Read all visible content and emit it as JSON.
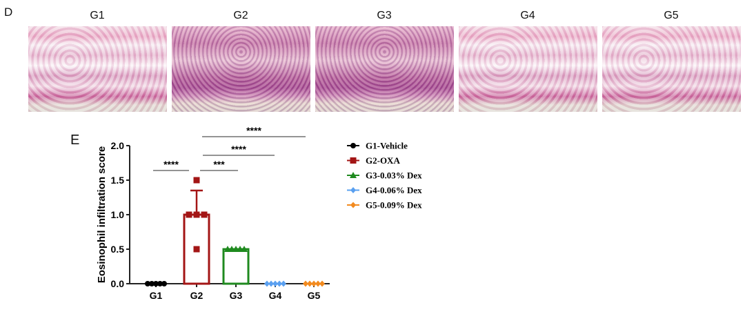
{
  "panel_d": {
    "label": "D",
    "groups": [
      "G1",
      "G2",
      "G3",
      "G4",
      "G5"
    ]
  },
  "panel_e": {
    "label": "E"
  },
  "chart_data": {
    "type": "bar",
    "ylabel": "Eosinophil infiltration score",
    "xlabel": "",
    "ylim": [
      0,
      2.0
    ],
    "yticks": [
      "0.0",
      "0.5",
      "1.0",
      "1.5",
      "2.0"
    ],
    "categories": [
      "G1",
      "G2",
      "G3",
      "G4",
      "G5"
    ],
    "means": [
      0,
      1.0,
      0.5,
      0,
      0
    ],
    "error_upper": [
      0,
      1.35,
      0.5,
      0,
      0
    ],
    "points": [
      [
        0,
        0,
        0,
        0,
        0
      ],
      [
        1.5,
        1.0,
        1.0,
        1.0,
        0.5
      ],
      [
        0.5,
        0.5,
        0.5,
        0.5,
        0.5
      ],
      [
        0,
        0,
        0,
        0,
        0
      ],
      [
        0,
        0,
        0,
        0,
        0
      ]
    ],
    "colors": [
      "#000000",
      "#a31515",
      "#1f8a1f",
      "#5aa0f0",
      "#f28a1e"
    ],
    "markers": [
      "circle",
      "square",
      "triangle",
      "diamond",
      "diamond"
    ],
    "legend": [
      "G1-Vehicle",
      "G2-OXA",
      "G3-0.03% Dex",
      "G4-0.06% Dex",
      "G5-0.09% Dex"
    ],
    "legend_position": "right",
    "significance": [
      {
        "from": "G1",
        "to": "G2",
        "label": "****"
      },
      {
        "from": "G2",
        "to": "G3",
        "label": "***"
      },
      {
        "from": "G2",
        "to": "G4",
        "label": "****"
      },
      {
        "from": "G2",
        "to": "G5",
        "label": "****"
      }
    ]
  }
}
